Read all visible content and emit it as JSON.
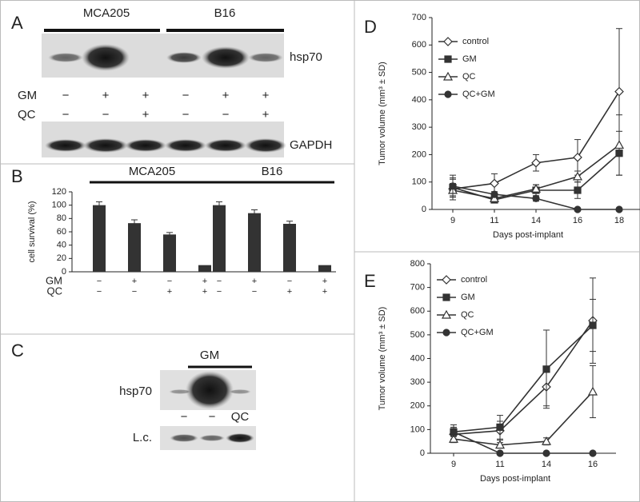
{
  "panel_a": {
    "letter": "A",
    "groups": [
      "MCA205",
      "B16"
    ],
    "blot_label": "hsp70",
    "rows": [
      {
        "label": "GM",
        "signs": [
          "−",
          "+",
          "+",
          "−",
          "+",
          "+"
        ]
      },
      {
        "label": "QC",
        "signs": [
          "−",
          "−",
          "+",
          "−",
          "−",
          "+"
        ]
      }
    ],
    "loading_label": "GAPDH"
  },
  "chart_data": [
    {
      "type": "bar",
      "letter": "B",
      "ylabel": "cell survival (%)",
      "groups": [
        "MCA205",
        "B16"
      ],
      "values": [
        100,
        73,
        56,
        10,
        100,
        88,
        72,
        10
      ],
      "errors": [
        5,
        5,
        3,
        0,
        5,
        5,
        4,
        0
      ],
      "rows": [
        {
          "label": "GM",
          "signs": [
            "−",
            "+",
            "−",
            "+",
            "−",
            "+",
            "−",
            "+"
          ]
        },
        {
          "label": "QC",
          "signs": [
            "−",
            "−",
            "+",
            "+",
            "−",
            "−",
            "+",
            "+"
          ]
        }
      ],
      "ylim": [
        0,
        120
      ],
      "yticks": [
        0,
        20,
        40,
        60,
        80,
        100,
        120
      ],
      "color": "#333333"
    },
    {
      "type": "line",
      "letter": "D",
      "xlabel": "Days post-implant",
      "ylabel": "Tumor volume (mm³ ± SD)",
      "categories": [
        "9",
        "11",
        "14",
        "16",
        "18"
      ],
      "series": [
        {
          "name": "control",
          "marker": "diamond-open",
          "color": "#333333",
          "values": [
            75,
            95,
            170,
            190,
            430
          ],
          "errors": [
            40,
            35,
            30,
            65,
            230
          ]
        },
        {
          "name": "GM",
          "marker": "square-filled",
          "color": "#333333",
          "values": [
            80,
            35,
            70,
            70,
            205
          ],
          "errors": [
            30,
            10,
            20,
            30,
            80
          ]
        },
        {
          "name": "QC",
          "marker": "triangle-open",
          "color": "#333333",
          "values": [
            70,
            40,
            75,
            120,
            235
          ],
          "errors": [
            25,
            10,
            15,
            20,
            110
          ]
        },
        {
          "name": "QC+GM",
          "marker": "circle-filled",
          "color": "#333333",
          "values": [
            85,
            55,
            40,
            0,
            0
          ],
          "errors": [
            40,
            10,
            10,
            0,
            0
          ]
        }
      ],
      "ylim": [
        0,
        700
      ],
      "yticks": [
        0,
        100,
        200,
        300,
        400,
        500,
        600,
        700
      ]
    },
    {
      "type": "line",
      "letter": "E",
      "xlabel": "Days post-implant",
      "ylabel": "Tumor volume (mm³ ± SD)",
      "categories": [
        "9",
        "11",
        "14",
        "16"
      ],
      "series": [
        {
          "name": "control",
          "marker": "diamond-open",
          "color": "#333333",
          "values": [
            80,
            95,
            280,
            560
          ],
          "errors": [
            25,
            40,
            80,
            180
          ]
        },
        {
          "name": "GM",
          "marker": "square-filled",
          "color": "#333333",
          "values": [
            90,
            110,
            355,
            540
          ],
          "errors": [
            30,
            50,
            165,
            110
          ]
        },
        {
          "name": "QC",
          "marker": "triangle-open",
          "color": "#333333",
          "values": [
            60,
            35,
            50,
            260
          ],
          "errors": [
            15,
            10,
            15,
            110
          ]
        },
        {
          "name": "QC+GM",
          "marker": "circle-filled",
          "color": "#333333",
          "values": [
            90,
            0,
            0,
            0
          ],
          "errors": [
            20,
            0,
            0,
            0
          ]
        }
      ],
      "ylim": [
        0,
        800
      ],
      "yticks": [
        0,
        100,
        200,
        300,
        400,
        500,
        600,
        700,
        800
      ]
    }
  ],
  "panel_c": {
    "letter": "C",
    "treatment": "GM",
    "blot_label": "hsp70",
    "lanes": [
      "−",
      "−",
      "QC"
    ],
    "loading_label": "L.c."
  }
}
